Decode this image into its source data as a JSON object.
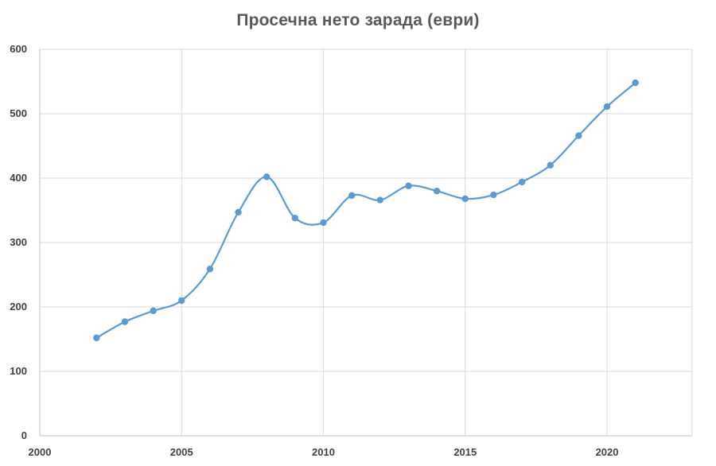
{
  "chart_data": {
    "type": "line",
    "title": "Просечна нето зарада (евpи)",
    "xlabel": "",
    "ylabel": "",
    "xlim": [
      2000,
      2023
    ],
    "ylim": [
      0,
      600
    ],
    "x_ticks": [
      2000,
      2005,
      2010,
      2015,
      2020
    ],
    "y_ticks": [
      0,
      100,
      200,
      300,
      400,
      500,
      600
    ],
    "grid": true,
    "smooth": true,
    "line_color": "#5b9bd5",
    "series": [
      {
        "x": [
          2002,
          2003,
          2004,
          2005,
          2006,
          2007,
          2008,
          2009,
          2010,
          2011,
          2012,
          2013,
          2014,
          2015,
          2016,
          2017,
          2018,
          2019,
          2020,
          2021
        ],
        "values": [
          152,
          177,
          194,
          210,
          259,
          347,
          402,
          338,
          331,
          373,
          366,
          388,
          380,
          368,
          374,
          394,
          420,
          466,
          511,
          548
        ]
      }
    ]
  }
}
